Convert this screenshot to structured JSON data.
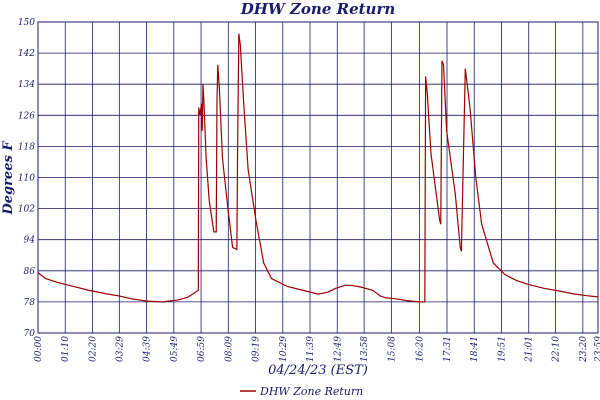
{
  "chart_data": {
    "type": "line",
    "title": "DHW Zone Return",
    "xlabel": "04/24/23 (EST)",
    "ylabel": "Degrees F",
    "ylim": [
      70,
      150
    ],
    "yticks": [
      70,
      78,
      86,
      94,
      102,
      110,
      118,
      126,
      134,
      142,
      150
    ],
    "xlim": [
      0,
      1439
    ],
    "xticks": [
      {
        "label": "00:00",
        "x": 0
      },
      {
        "label": "01:10",
        "x": 70
      },
      {
        "label": "02:20",
        "x": 140
      },
      {
        "label": "03:29",
        "x": 209
      },
      {
        "label": "04:39",
        "x": 279
      },
      {
        "label": "05:49",
        "x": 349
      },
      {
        "label": "06:59",
        "x": 419
      },
      {
        "label": "08:09",
        "x": 489
      },
      {
        "label": "09:19",
        "x": 559
      },
      {
        "label": "10:29",
        "x": 629
      },
      {
        "label": "11:39",
        "x": 699
      },
      {
        "label": "12:49",
        "x": 769
      },
      {
        "label": "13:58",
        "x": 838
      },
      {
        "label": "15:08",
        "x": 908
      },
      {
        "label": "16:20",
        "x": 980
      },
      {
        "label": "17:31",
        "x": 1051
      },
      {
        "label": "18:41",
        "x": 1121
      },
      {
        "label": "19:51",
        "x": 1191
      },
      {
        "label": "21:01",
        "x": 1261
      },
      {
        "label": "22:10",
        "x": 1330
      },
      {
        "label": "23:20",
        "x": 1400
      },
      {
        "label": "23:59",
        "x": 1439
      }
    ],
    "grid": true,
    "legend_position": "bottom-center",
    "series": [
      {
        "name": "DHW Zone Return",
        "color": "#9b0000",
        "x": [
          0,
          20,
          50,
          90,
          130,
          180,
          210,
          240,
          280,
          320,
          360,
          385,
          405,
          412,
          413,
          416,
          420,
          422,
          424,
          427,
          432,
          440,
          452,
          458,
          460,
          462,
          466,
          474,
          488,
          500,
          511,
          513,
          516,
          520,
          528,
          540,
          560,
          580,
          600,
          640,
          680,
          720,
          745,
          765,
          790,
          810,
          830,
          860,
          880,
          895,
          900,
          920,
          950,
          980,
          994,
          996,
          1000,
          1010,
          1023,
          1032,
          1035,
          1038,
          1042,
          1050,
          1072,
          1085,
          1088,
          1092,
          1098,
          1110,
          1125,
          1140,
          1170,
          1200,
          1230,
          1260,
          1300,
          1340,
          1380,
          1410,
          1439
        ],
        "y": [
          85.5,
          84,
          83,
          82,
          81,
          80,
          79.5,
          78.8,
          78.2,
          78,
          78.5,
          79.2,
          80.5,
          81,
          128,
          126,
          129,
          122,
          134,
          128,
          115,
          104,
          96,
          96,
          130,
          139,
          133,
          115,
          102,
          92,
          91.5,
          118,
          147,
          144,
          130,
          112,
          99,
          88,
          84,
          82,
          81,
          80,
          80.5,
          81.5,
          82.3,
          82.2,
          81.8,
          81,
          79.5,
          79,
          79,
          78.8,
          78.3,
          78,
          78,
          136,
          132,
          116,
          106,
          99,
          98,
          140,
          139,
          122,
          106,
          92,
          91,
          110,
          138,
          128,
          110,
          98,
          88,
          85,
          83.5,
          82.5,
          81.5,
          80.8,
          80,
          79.6,
          79.3
        ]
      }
    ]
  }
}
